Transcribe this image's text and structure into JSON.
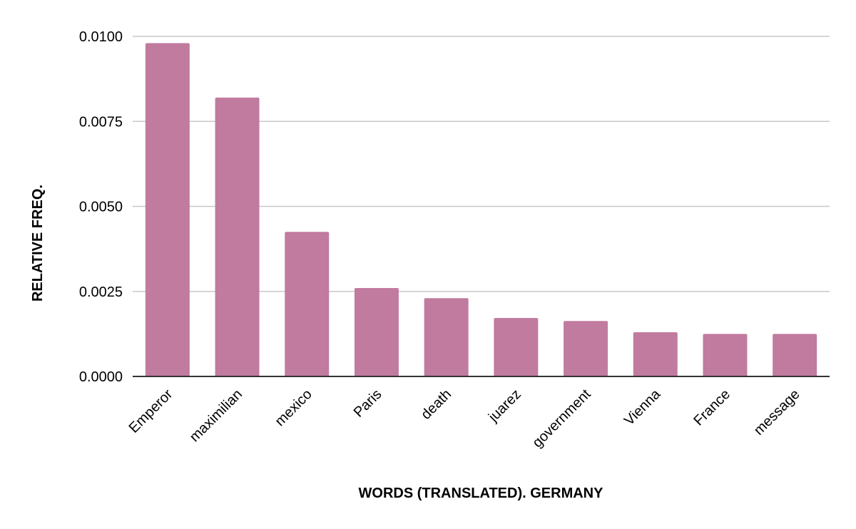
{
  "chart_data": {
    "type": "bar",
    "title": "",
    "xlabel": "WORDS (TRANSLATED). GERMANY",
    "ylabel": "RELATIVE FREQ.",
    "categories": [
      "Emperor",
      "maximilian",
      "mexico",
      "Paris",
      "death",
      "juarez",
      "government",
      "Vienna",
      "France",
      "message"
    ],
    "values": [
      0.0098,
      0.0082,
      0.00425,
      0.0026,
      0.0023,
      0.00172,
      0.00163,
      0.0013,
      0.00125,
      0.00125
    ],
    "ylim": [
      0,
      0.01
    ],
    "yticks": [
      "0.0000",
      "0.0025",
      "0.0050",
      "0.0075",
      "0.0100"
    ],
    "ytick_values": [
      0,
      0.0025,
      0.005,
      0.0075,
      0.01
    ],
    "grid": true,
    "legend": "none",
    "bar_color": "#c17b9f"
  }
}
